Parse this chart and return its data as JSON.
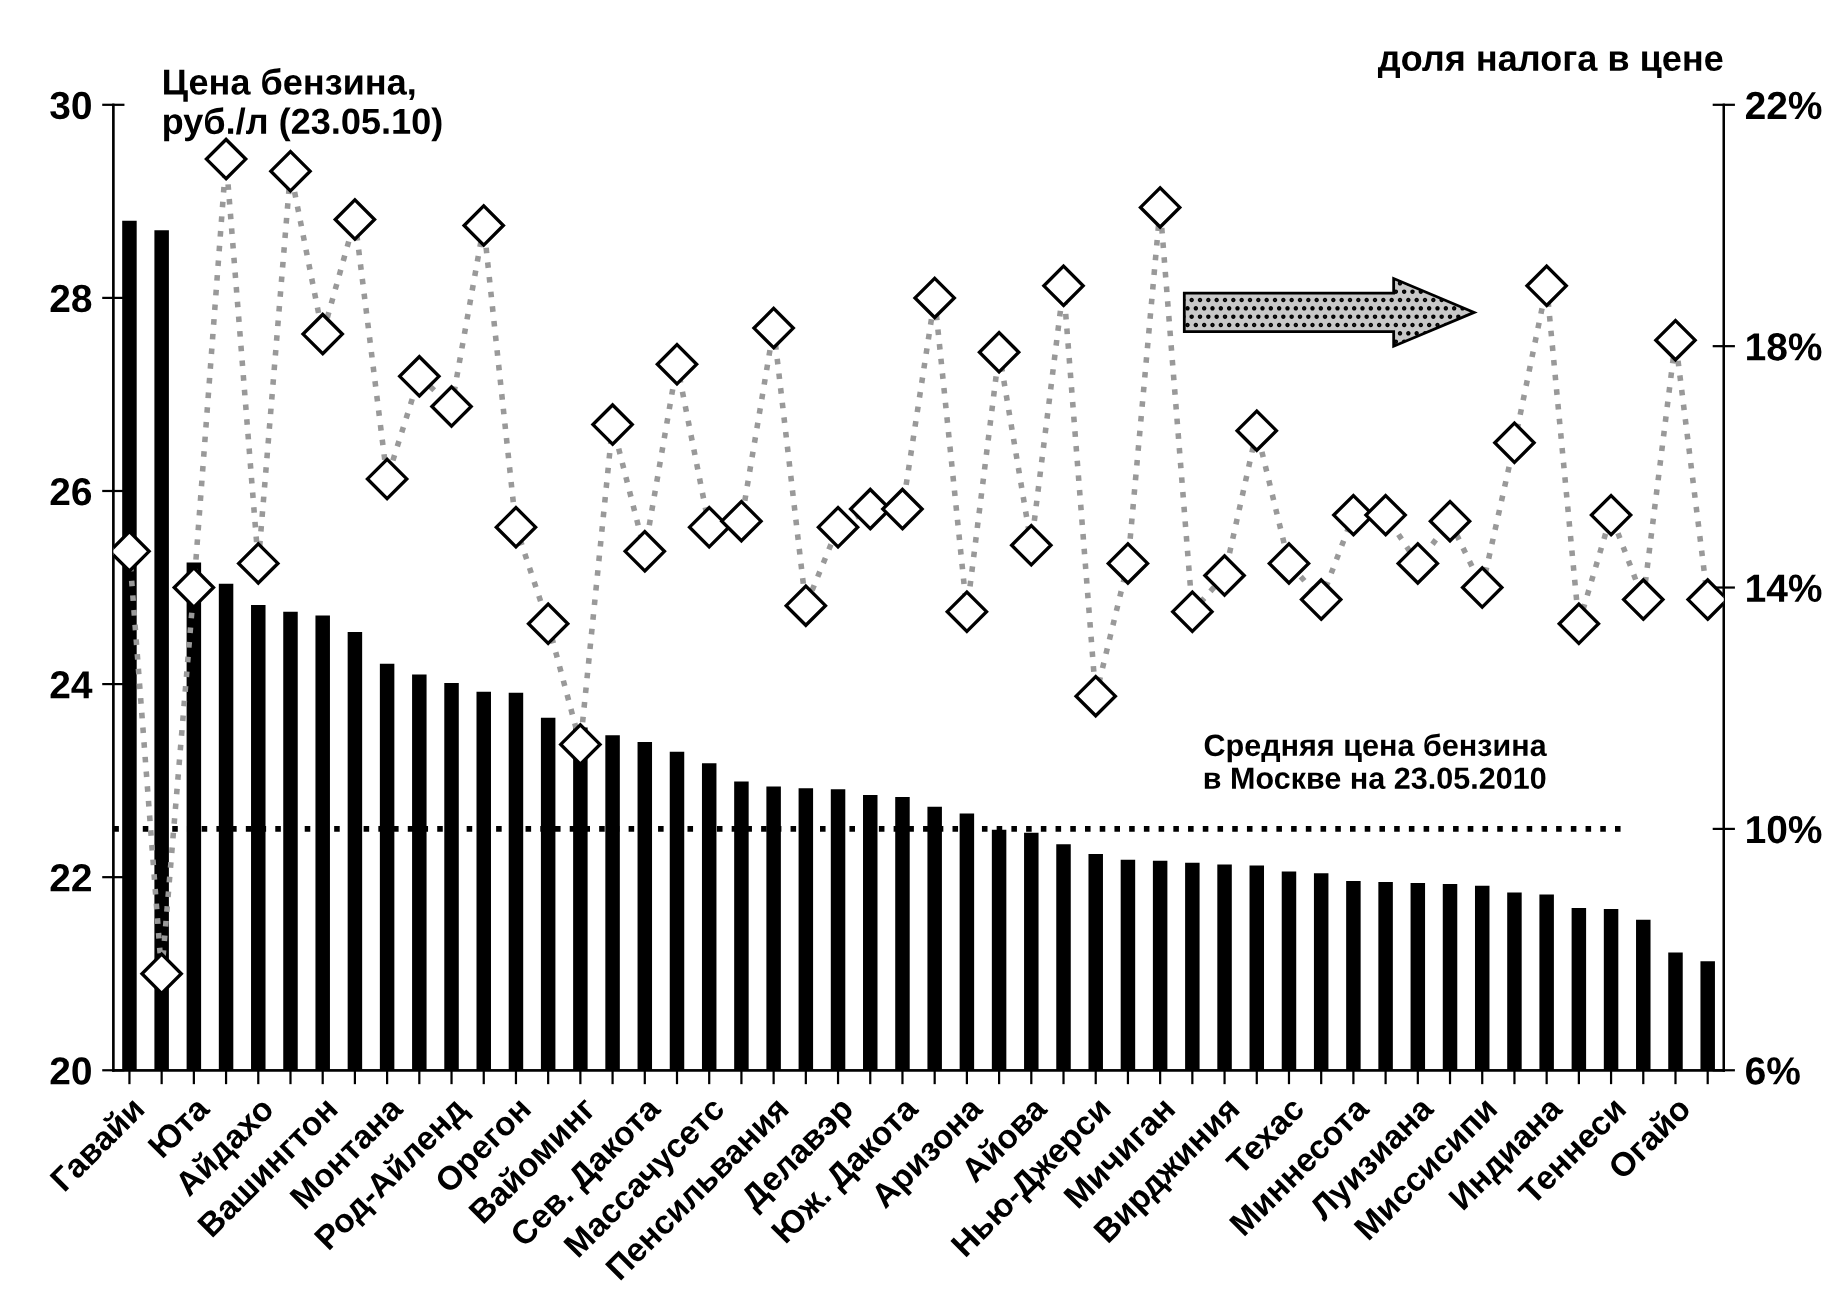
{
  "chart_data": {
    "type": "bar",
    "ylabel": "Цена бензина,\nруб./л (23.05.10)",
    "y2label": "доля налога в цене",
    "categories": [
      "Гавайи",
      null,
      "Юта",
      null,
      "Айдахо",
      null,
      "Вашингтон",
      null,
      "Монтана",
      null,
      "Род-Айленд",
      null,
      "Орегон",
      null,
      "Вайоминг",
      null,
      "Сев. Дакота",
      null,
      "Массачусетс",
      null,
      "Пенсильвания",
      null,
      "Делавэр",
      null,
      "Юж. Дакота",
      null,
      "Аризона",
      null,
      "Айова",
      null,
      "Нью-Джерси",
      null,
      "Мичиган",
      null,
      "Вирджиния",
      null,
      "Техас",
      null,
      "Миннесота",
      null,
      "Луизиана",
      null,
      "Миссисипи",
      null,
      "Индиана",
      null,
      "Теннеси",
      null,
      "Огайо",
      null
    ],
    "series": [
      {
        "color": "#000000",
        "values": [
          28.8,
          28.7,
          25.26,
          25.04,
          24.82,
          24.75,
          24.71,
          24.54,
          24.21,
          24.1,
          24.01,
          23.92,
          23.91,
          23.65,
          23.55,
          23.47,
          23.4,
          23.3,
          23.18,
          22.99,
          22.94,
          22.92,
          22.91,
          22.85,
          22.83,
          22.73,
          22.66,
          22.49,
          22.46,
          22.34,
          22.24,
          22.18,
          22.17,
          22.15,
          22.13,
          22.12,
          22.06,
          22.04,
          21.96,
          21.95,
          21.94,
          21.93,
          21.91,
          21.84,
          21.82,
          21.68,
          21.67,
          21.56,
          21.22,
          21.13
        ]
      },
      {
        "type": "line",
        "axis": "y2",
        "color": "#999999",
        "marker": "diamond",
        "line_style": "dotted",
        "values": [
          14.6,
          7.6,
          14.0,
          21.1,
          14.4,
          20.9,
          18.2,
          20.1,
          15.8,
          17.5,
          17.0,
          20.0,
          15.0,
          13.4,
          11.4,
          16.7,
          14.6,
          17.7,
          15.0,
          15.1,
          18.3,
          13.7,
          15.0,
          15.3,
          15.3,
          18.8,
          13.6,
          17.9,
          14.7,
          19.0,
          12.2,
          14.4,
          20.3,
          13.6,
          14.2,
          16.6,
          14.4,
          13.8,
          15.2,
          15.2,
          14.4,
          15.1,
          14.0,
          16.4,
          19.0,
          13.4,
          15.2,
          13.8,
          18.1,
          13.8
        ]
      }
    ],
    "ylim": [
      20,
      30
    ],
    "yticks": [
      20,
      22,
      24,
      26,
      28,
      30
    ],
    "y2lim": [
      6,
      22
    ],
    "y2ticks": [
      {
        "value": 6,
        "label": "6%"
      },
      {
        "value": 10,
        "label": "10%"
      },
      {
        "value": 14,
        "label": "14%"
      },
      {
        "value": 18,
        "label": "18%"
      },
      {
        "value": 22,
        "label": "22%"
      }
    ],
    "ref_lines": [
      {
        "axis": "y",
        "value": 22.5,
        "label": "Средняя цена бензина\nв Москве на 23.05.2010",
        "color": "#000000",
        "line_style": "dotted"
      }
    ],
    "grid": false,
    "legend": false
  }
}
